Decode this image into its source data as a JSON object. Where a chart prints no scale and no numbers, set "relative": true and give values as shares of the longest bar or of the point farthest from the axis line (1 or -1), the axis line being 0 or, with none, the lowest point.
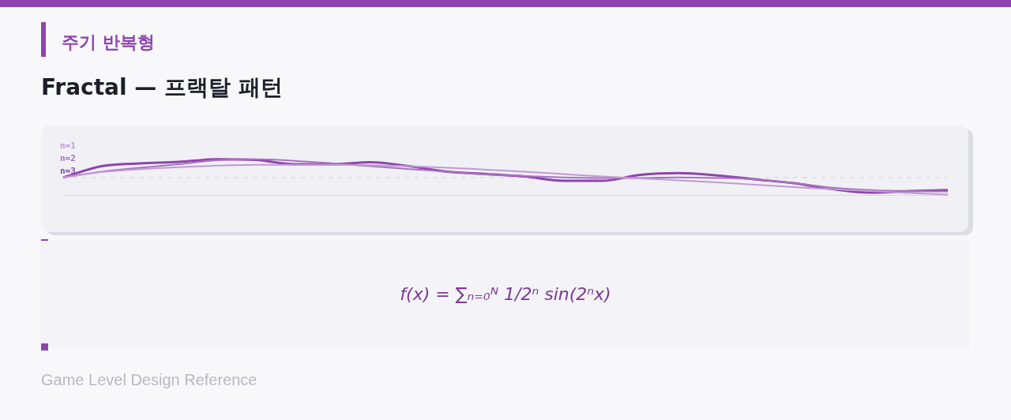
{
  "chart_data": {
    "type": "line",
    "title": "Fractal — 프랙탈 패턴",
    "subtitle": "주기 반복형",
    "relative": true,
    "categories": [
      null,
      null,
      null,
      null,
      null,
      null,
      null,
      null,
      null,
      null,
      null,
      null,
      null,
      null,
      null,
      null,
      null,
      null,
      null,
      null,
      null,
      null,
      null,
      null
    ],
    "series": [
      {
        "name": "n=1",
        "color": "#c09ad2",
        "values": [
          0,
          0.3,
          0.46,
          0.57,
          0.65,
          0.7,
          0.7,
          0.7,
          0.68,
          0.62,
          0.54,
          0.43,
          0.32,
          0.19,
          0.05,
          -0.05,
          -0.16,
          -0.27,
          -0.41,
          -0.54,
          -0.65,
          -0.76,
          -0.86,
          -0.95
        ]
      },
      {
        "name": "n=2",
        "color": "#a872c0",
        "values": [
          0,
          0.32,
          0.54,
          0.73,
          0.95,
          1,
          0.92,
          0.78,
          0.62,
          0.46,
          0.32,
          0.16,
          0.08,
          0,
          -0.03,
          -0.03,
          0,
          -0.03,
          -0.11,
          -0.32,
          -0.57,
          -0.7,
          -0.76,
          -0.78
        ]
      },
      {
        "name": "n=3",
        "color": "#8e44ad",
        "values": [
          0,
          0.62,
          0.78,
          0.86,
          1,
          0.97,
          0.73,
          0.73,
          0.84,
          0.62,
          0.32,
          0.19,
          0.05,
          -0.19,
          -0.19,
          0.14,
          0.24,
          0.11,
          -0.11,
          -0.32,
          -0.65,
          -0.84,
          -0.76,
          -0.7
        ]
      }
    ],
    "ref_lines": [
      {
        "axis": "y",
        "value": 0,
        "color": "#dcdce6",
        "line_style": "dashed"
      }
    ],
    "legend": "top left",
    "marker": "none",
    "line_style": "solid",
    "annotations": [
      "f(x) = ∑ₙ₌₀ᴺ 1/2ⁿ sin(2ⁿx)",
      "Game Level Design Reference"
    ]
  }
}
